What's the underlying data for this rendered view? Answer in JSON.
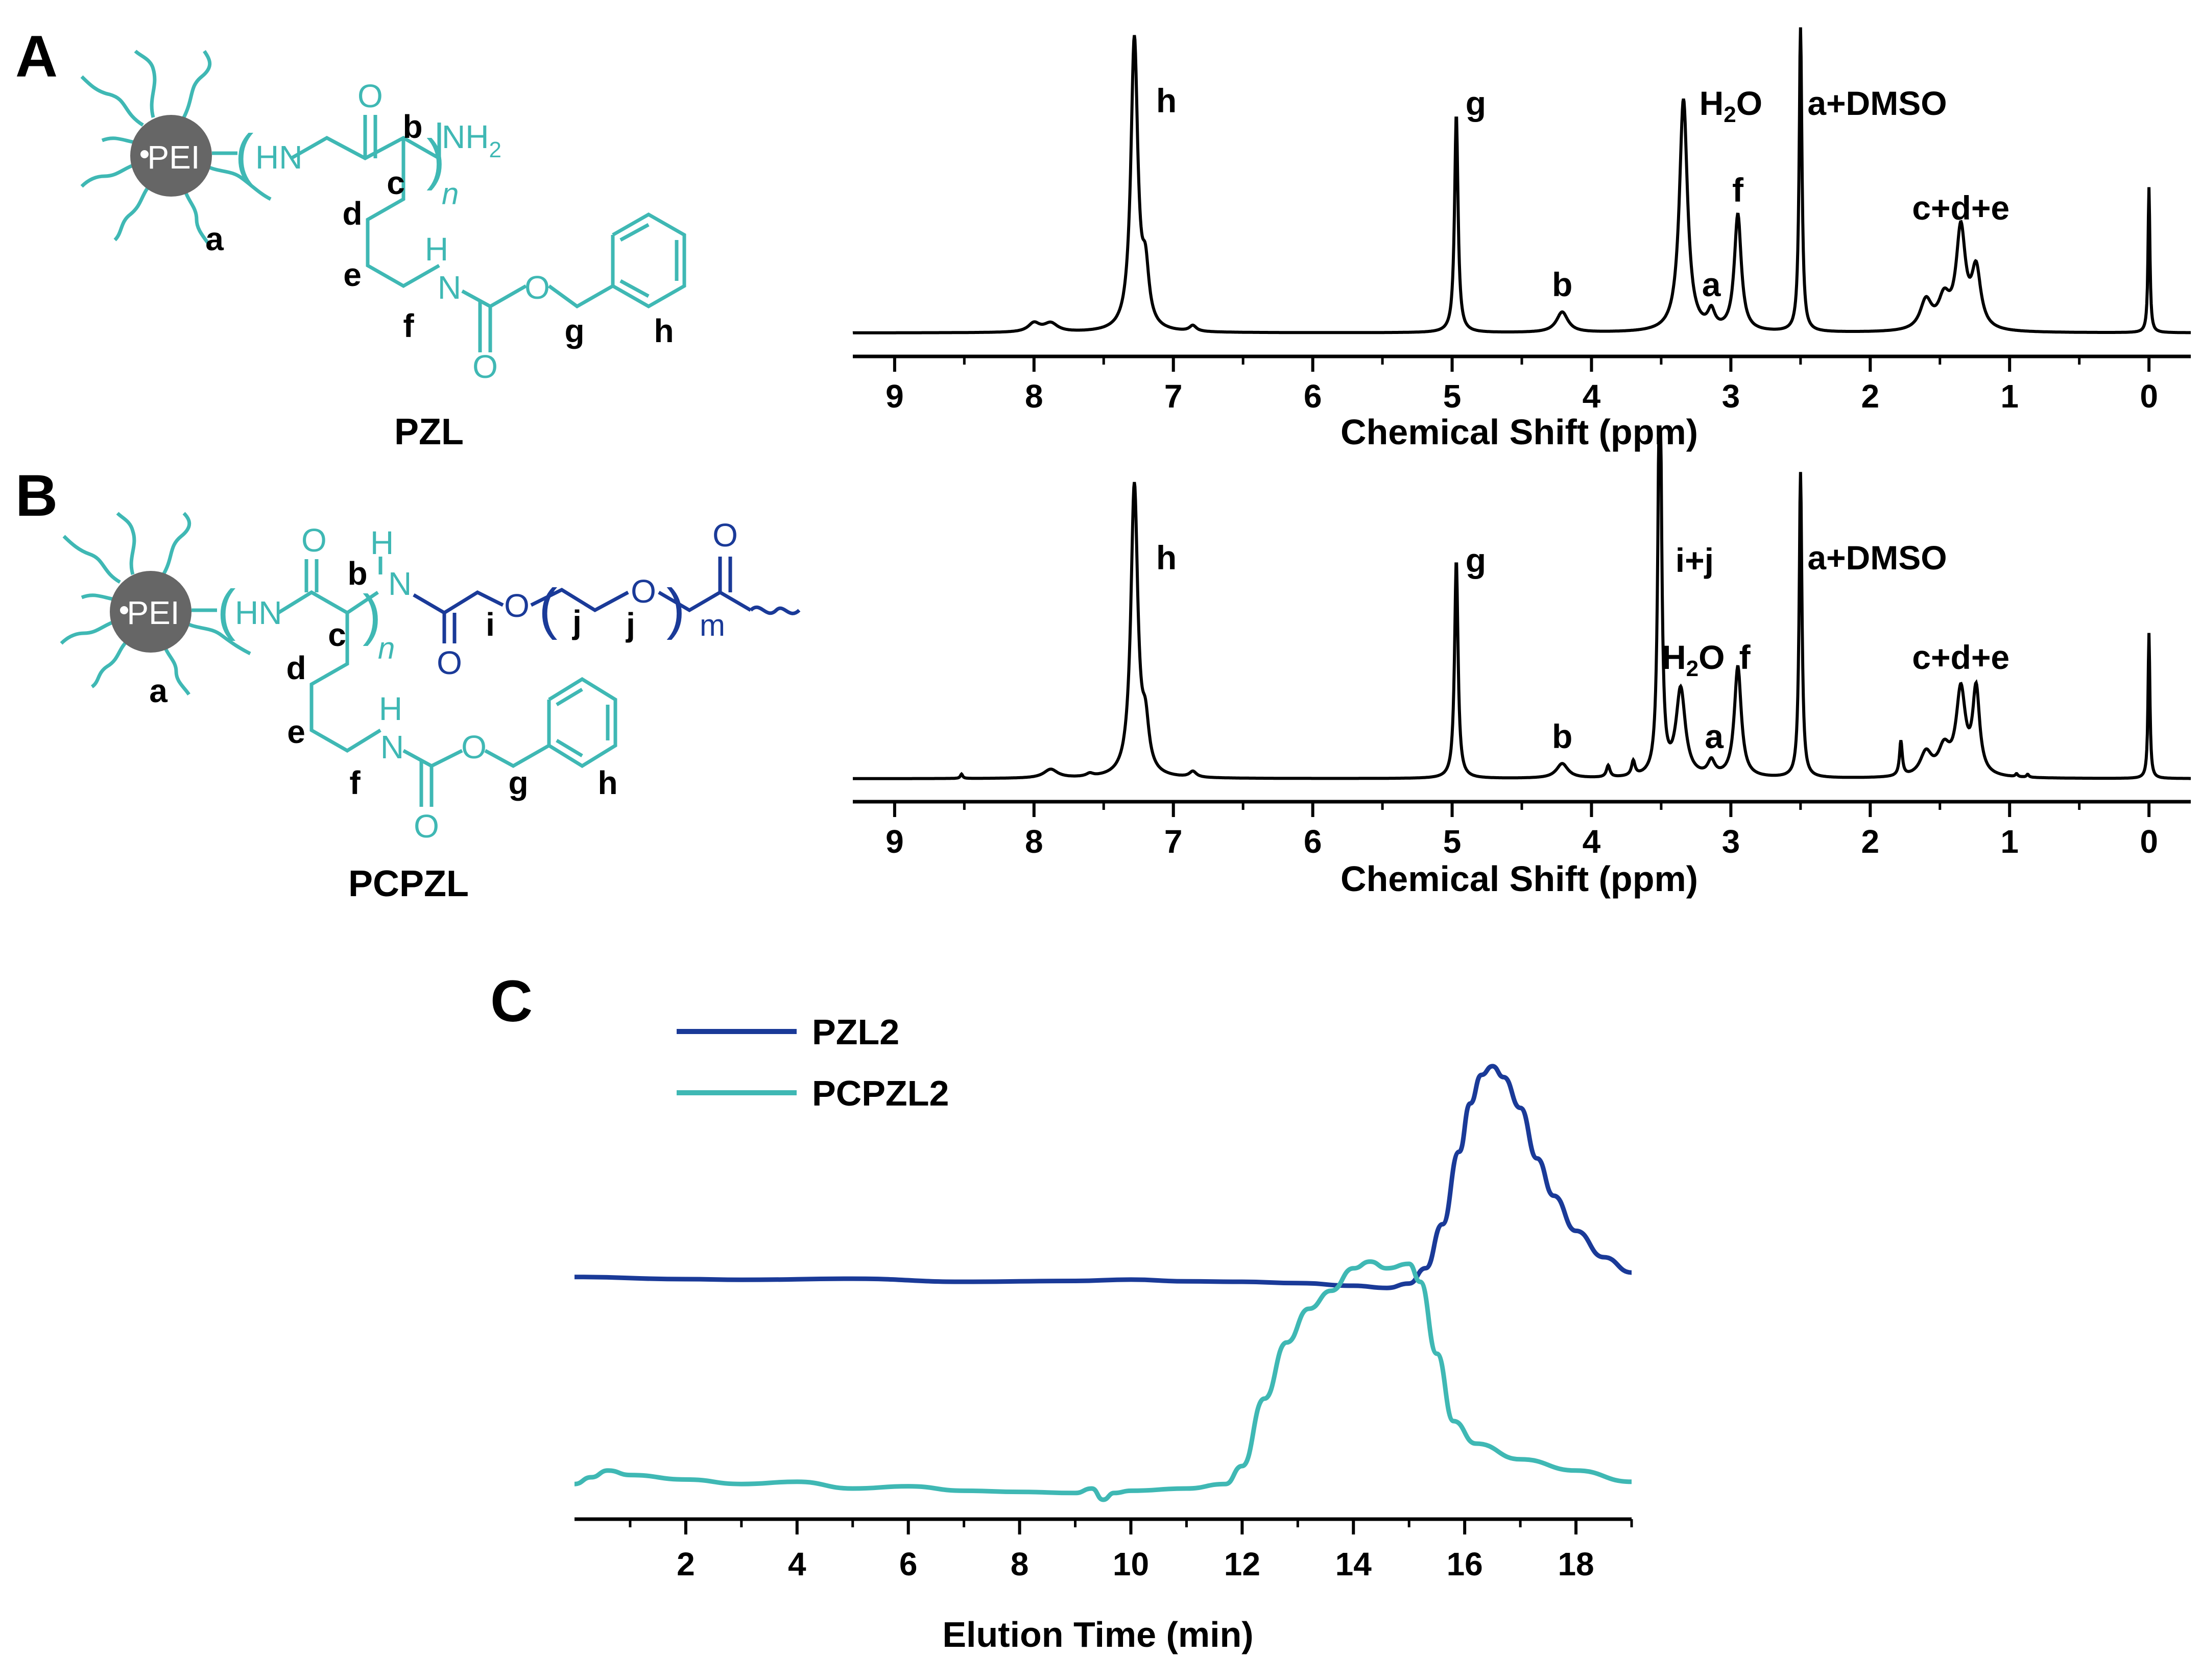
{
  "colors": {
    "teal": "#3fb8b4",
    "navy": "#1a3a98",
    "core": "#666666",
    "black": "#000000"
  },
  "panels": {
    "A": "A",
    "B": "B",
    "C": "C"
  },
  "structures": {
    "A": {
      "name": "PZL",
      "core": "PEI",
      "atoms": {
        "hn": "HN",
        "o1": "O",
        "nh2": "NH",
        "nh2_sub": "2",
        "n": "n",
        "nh_h": "H",
        "nh_n": "N",
        "o2": "O",
        "o3": "O"
      },
      "letters": [
        "a",
        "b",
        "c",
        "d",
        "e",
        "f",
        "g",
        "h"
      ]
    },
    "B": {
      "name": "PCPZL",
      "core": "PEI",
      "atoms": {
        "hn": "HN",
        "o1": "O",
        "nh_h": "H",
        "nh_n": "N",
        "n": "n",
        "o_amide": "O",
        "o_ether1": "O",
        "o_ether2": "O",
        "o_end": "O",
        "m": "m",
        "nh2_h": "H",
        "nh2_n": "N",
        "o2": "O",
        "o3": "O"
      },
      "letters": [
        "a",
        "b",
        "c",
        "d",
        "e",
        "f",
        "g",
        "h",
        "i",
        "j",
        "j"
      ]
    }
  },
  "chart_data": [
    {
      "type": "line",
      "panel": "A",
      "xlabel": "Chemical Shift (ppm)",
      "xlim": [
        9.3,
        -0.3
      ],
      "x_ticks": [
        "9",
        "8",
        "7",
        "6",
        "5",
        "4",
        "3",
        "2",
        "1",
        "0"
      ],
      "y_axis": "none",
      "series": [
        {
          "peaks": [
            {
              "ppm": 8.0,
              "height": 0.03,
              "width": 0.05
            },
            {
              "ppm": 7.88,
              "height": 0.03,
              "width": 0.06
            },
            {
              "ppm": 7.28,
              "height": 1.0,
              "width": 0.03
            },
            {
              "ppm": 7.2,
              "height": 0.18,
              "width": 0.03
            },
            {
              "ppm": 6.86,
              "height": 0.02,
              "width": 0.03
            },
            {
              "ppm": 4.97,
              "height": 0.75,
              "width": 0.015
            },
            {
              "ppm": 4.21,
              "height": 0.07,
              "width": 0.05
            },
            {
              "ppm": 3.34,
              "height": 0.8,
              "width": 0.035
            },
            {
              "ppm": 3.14,
              "height": 0.06,
              "width": 0.03
            },
            {
              "ppm": 2.95,
              "height": 0.4,
              "width": 0.03
            },
            {
              "ppm": 2.5,
              "height": 1.05,
              "width": 0.012
            },
            {
              "ppm": 1.6,
              "height": 0.1,
              "width": 0.05
            },
            {
              "ppm": 1.47,
              "height": 0.1,
              "width": 0.05
            },
            {
              "ppm": 1.35,
              "height": 0.34,
              "width": 0.04
            },
            {
              "ppm": 1.24,
              "height": 0.2,
              "width": 0.04
            },
            {
              "ppm": 0.0,
              "height": 0.5,
              "width": 0.008
            }
          ]
        }
      ],
      "annotations": [
        {
          "text": "h",
          "ppm": 7.05
        },
        {
          "text": "g",
          "ppm": 4.83
        },
        {
          "text": "b",
          "ppm": 4.21
        },
        {
          "text": "H",
          "sub": "2",
          "tail": "O",
          "ppm": 3.0
        },
        {
          "text": "a",
          "ppm": 3.14
        },
        {
          "text": "f",
          "ppm": 2.95
        },
        {
          "text": "a+DMSO",
          "ppm": 1.95
        },
        {
          "text": "c+d+e",
          "ppm": 1.35
        }
      ]
    },
    {
      "type": "line",
      "panel": "B",
      "xlabel": "Chemical Shift (ppm)",
      "xlim": [
        9.3,
        -0.3
      ],
      "x_ticks": [
        "9",
        "8",
        "7",
        "6",
        "5",
        "4",
        "3",
        "2",
        "1",
        "0"
      ],
      "y_axis": "none",
      "series": [
        {
          "peaks": [
            {
              "ppm": 8.52,
              "height": 0.015,
              "width": 0.01
            },
            {
              "ppm": 7.88,
              "height": 0.03,
              "width": 0.06
            },
            {
              "ppm": 7.6,
              "height": 0.01,
              "width": 0.03
            },
            {
              "ppm": 7.28,
              "height": 1.0,
              "width": 0.03
            },
            {
              "ppm": 7.2,
              "height": 0.15,
              "width": 0.03
            },
            {
              "ppm": 6.86,
              "height": 0.02,
              "width": 0.03
            },
            {
              "ppm": 4.97,
              "height": 0.75,
              "width": 0.015
            },
            {
              "ppm": 4.21,
              "height": 0.05,
              "width": 0.05
            },
            {
              "ppm": 3.88,
              "height": 0.04,
              "width": 0.015
            },
            {
              "ppm": 3.7,
              "height": 0.05,
              "width": 0.015
            },
            {
              "ppm": 3.51,
              "height": 1.6,
              "width": 0.014
            },
            {
              "ppm": 3.36,
              "height": 0.3,
              "width": 0.04
            },
            {
              "ppm": 3.14,
              "height": 0.05,
              "width": 0.03
            },
            {
              "ppm": 2.95,
              "height": 0.38,
              "width": 0.03
            },
            {
              "ppm": 2.5,
              "height": 1.05,
              "width": 0.012
            },
            {
              "ppm": 1.78,
              "height": 0.12,
              "width": 0.012
            },
            {
              "ppm": 1.6,
              "height": 0.08,
              "width": 0.05
            },
            {
              "ppm": 1.47,
              "height": 0.09,
              "width": 0.05
            },
            {
              "ppm": 1.35,
              "height": 0.29,
              "width": 0.04
            },
            {
              "ppm": 1.24,
              "height": 0.29,
              "width": 0.03
            },
            {
              "ppm": 0.95,
              "height": 0.01,
              "width": 0.01
            },
            {
              "ppm": 0.87,
              "height": 0.01,
              "width": 0.01
            },
            {
              "ppm": 0.0,
              "height": 0.5,
              "width": 0.008
            }
          ]
        }
      ],
      "annotations": [
        {
          "text": "h",
          "ppm": 7.05
        },
        {
          "text": "g",
          "ppm": 4.83
        },
        {
          "text": "b",
          "ppm": 4.21
        },
        {
          "text": "i+j",
          "ppm": 3.26
        },
        {
          "text": "H",
          "sub": "2",
          "tail": "O",
          "ppm": 3.27
        },
        {
          "text": "f",
          "ppm": 2.9
        },
        {
          "text": "a",
          "ppm": 3.12
        },
        {
          "text": "a+DMSO",
          "ppm": 1.95
        },
        {
          "text": "c+d+e",
          "ppm": 1.35
        }
      ]
    },
    {
      "type": "line",
      "panel": "C",
      "xlabel": "Elution Time (min)",
      "xlim": [
        0,
        19
      ],
      "x_ticks": [
        2,
        4,
        6,
        8,
        10,
        12,
        14,
        16,
        18
      ],
      "y_axis": "none",
      "legend": "top-left",
      "series": [
        {
          "name": "PZL2",
          "color": "#1a3a98",
          "baseline": 0.0,
          "points": [
            [
              0,
              0.01
            ],
            [
              2,
              0.0
            ],
            [
              3,
              -0.003
            ],
            [
              5,
              0.002
            ],
            [
              7,
              -0.012
            ],
            [
              9,
              -0.008
            ],
            [
              10,
              -0.002
            ],
            [
              11,
              -0.01
            ],
            [
              12,
              -0.012
            ],
            [
              13,
              -0.018
            ],
            [
              14,
              -0.03
            ],
            [
              14.6,
              -0.04
            ],
            [
              15.0,
              -0.02
            ],
            [
              15.3,
              0.05
            ],
            [
              15.6,
              0.25
            ],
            [
              15.9,
              0.58
            ],
            [
              16.1,
              0.8
            ],
            [
              16.3,
              0.93
            ],
            [
              16.5,
              0.97
            ],
            [
              16.7,
              0.92
            ],
            [
              17,
              0.78
            ],
            [
              17.3,
              0.55
            ],
            [
              17.6,
              0.38
            ],
            [
              18,
              0.22
            ],
            [
              18.5,
              0.1
            ],
            [
              19,
              0.03
            ]
          ]
        },
        {
          "name": "PCPZL2",
          "color": "#3fb8b4",
          "baseline": 0.0,
          "points": [
            [
              0,
              0.02
            ],
            [
              0.3,
              0.05
            ],
            [
              0.6,
              0.08
            ],
            [
              1,
              0.06
            ],
            [
              2,
              0.04
            ],
            [
              3,
              0.02
            ],
            [
              4,
              0.03
            ],
            [
              5,
              0.0
            ],
            [
              6,
              0.01
            ],
            [
              7,
              -0.01
            ],
            [
              8,
              -0.015
            ],
            [
              9,
              -0.02
            ],
            [
              9.3,
              0.0
            ],
            [
              9.5,
              -0.05
            ],
            [
              9.7,
              -0.02
            ],
            [
              10,
              -0.01
            ],
            [
              11,
              0.0
            ],
            [
              11.7,
              0.02
            ],
            [
              12.0,
              0.1
            ],
            [
              12.4,
              0.4
            ],
            [
              12.8,
              0.65
            ],
            [
              13.2,
              0.8
            ],
            [
              13.6,
              0.88
            ],
            [
              14.0,
              0.98
            ],
            [
              14.3,
              1.01
            ],
            [
              14.6,
              0.98
            ],
            [
              15.0,
              1.0
            ],
            [
              15.2,
              0.92
            ],
            [
              15.5,
              0.6
            ],
            [
              15.8,
              0.3
            ],
            [
              16.2,
              0.2
            ],
            [
              17,
              0.13
            ],
            [
              18,
              0.08
            ],
            [
              19,
              0.03
            ]
          ]
        }
      ]
    }
  ]
}
